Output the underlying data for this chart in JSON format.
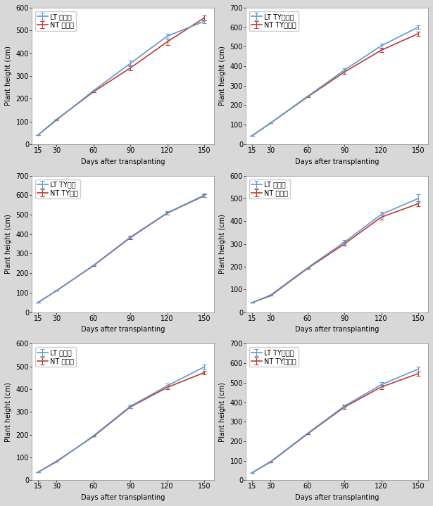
{
  "subplots": [
    {
      "legend_LT": "LT 미니쳯",
      "legend_NT": "NT 미니쳯",
      "ylim": [
        0,
        600
      ],
      "yticks": [
        0,
        100,
        200,
        300,
        400,
        500,
        600
      ],
      "LT_y": [
        40,
        105,
        235,
        355,
        475,
        540
      ],
      "NT_y": [
        40,
        108,
        230,
        335,
        450,
        555
      ],
      "LT_yerr": [
        2,
        3,
        8,
        12,
        10,
        8
      ],
      "NT_yerr": [
        2,
        3,
        8,
        10,
        15,
        10
      ]
    },
    {
      "legend_LT": "LT TY하이큐",
      "legend_NT": "NT TY하이큐",
      "ylim": [
        0,
        700
      ],
      "yticks": [
        0,
        100,
        200,
        300,
        400,
        500,
        600,
        700
      ],
      "LT_y": [
        43,
        108,
        245,
        380,
        505,
        600
      ],
      "NT_y": [
        43,
        108,
        242,
        370,
        482,
        567
      ],
      "LT_yerr": [
        2,
        3,
        5,
        10,
        12,
        8
      ],
      "NT_yerr": [
        2,
        3,
        5,
        8,
        10,
        10
      ]
    },
    {
      "legend_LT": "LT TY카욤",
      "legend_NT": "NT TY카욤",
      "ylim": [
        0,
        700
      ],
      "yticks": [
        0,
        100,
        200,
        300,
        400,
        500,
        600,
        700
      ],
      "LT_y": [
        50,
        110,
        240,
        385,
        510,
        600
      ],
      "NT_y": [
        50,
        110,
        238,
        382,
        508,
        597
      ],
      "LT_yerr": [
        2,
        3,
        5,
        8,
        8,
        10
      ],
      "NT_yerr": [
        2,
        3,
        5,
        8,
        8,
        8
      ]
    },
    {
      "legend_LT": "LT 유니켈",
      "legend_NT": "NT 유니켈",
      "ylim": [
        0,
        600
      ],
      "yticks": [
        0,
        100,
        200,
        300,
        400,
        500,
        600
      ],
      "LT_y": [
        42,
        75,
        195,
        308,
        430,
        500
      ],
      "NT_y": [
        42,
        72,
        192,
        300,
        418,
        477
      ],
      "LT_yerr": [
        2,
        3,
        8,
        10,
        12,
        20
      ],
      "NT_yerr": [
        2,
        3,
        5,
        8,
        12,
        12
      ]
    },
    {
      "legend_LT": "LT 연폴핀",
      "legend_NT": "NT 연폴핀",
      "ylim": [
        0,
        600
      ],
      "yticks": [
        0,
        100,
        200,
        300,
        400,
        500,
        600
      ],
      "LT_y": [
        35,
        80,
        195,
        325,
        415,
        498
      ],
      "NT_y": [
        35,
        83,
        192,
        322,
        408,
        473
      ],
      "LT_yerr": [
        2,
        3,
        5,
        8,
        10,
        10
      ],
      "NT_yerr": [
        2,
        3,
        5,
        5,
        8,
        8
      ]
    },
    {
      "legend_LT": "LT TY시스팀",
      "legend_NT": "NT TY시스팀",
      "ylim": [
        0,
        700
      ],
      "yticks": [
        0,
        100,
        200,
        300,
        400,
        500,
        600,
        700
      ],
      "LT_y": [
        38,
        95,
        240,
        380,
        490,
        570
      ],
      "NT_y": [
        38,
        93,
        237,
        375,
        478,
        547
      ],
      "LT_yerr": [
        2,
        3,
        5,
        8,
        12,
        12
      ],
      "NT_yerr": [
        2,
        3,
        5,
        8,
        10,
        10
      ]
    }
  ],
  "x": [
    15,
    30,
    60,
    90,
    120,
    150
  ],
  "xlabel": "Days after transplanting",
  "ylabel": "Plant height (cm)",
  "LT_color": "#5B9BD5",
  "NT_color": "#C0392B",
  "line_width": 1.2,
  "legend_fontsize": 7,
  "tick_fontsize": 7,
  "label_fontsize": 7,
  "bg_color": "#d8d8d8",
  "plot_bg_color": "#ffffff",
  "border_color": "#aaaaaa"
}
